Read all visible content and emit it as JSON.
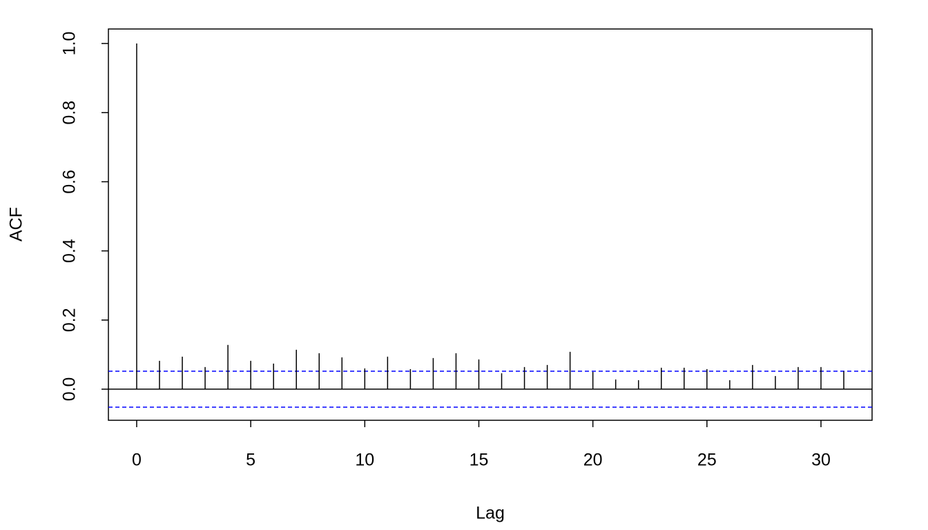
{
  "chart_data": {
    "type": "acf",
    "x_label": "Lag",
    "y_label": "ACF",
    "x": [
      0,
      1,
      2,
      3,
      4,
      5,
      6,
      7,
      8,
      9,
      10,
      11,
      12,
      13,
      14,
      15,
      16,
      17,
      18,
      19,
      20,
      21,
      22,
      23,
      24,
      25,
      26,
      27,
      28,
      29,
      30,
      31
    ],
    "values": [
      1.0,
      0.082,
      0.094,
      0.064,
      0.128,
      0.082,
      0.074,
      0.114,
      0.104,
      0.092,
      0.06,
      0.094,
      0.058,
      0.09,
      0.104,
      0.086,
      0.046,
      0.064,
      0.07,
      0.108,
      0.05,
      0.028,
      0.026,
      0.062,
      0.062,
      0.058,
      0.026,
      0.07,
      0.038,
      0.064,
      0.064,
      0.052
    ],
    "color": "#000000",
    "confidence_bounds": [
      0.052,
      -0.052
    ],
    "bound_color": "#0000ff",
    "xlim": [
      -1.24,
      32.24
    ],
    "xticks": [
      0,
      5,
      10,
      15,
      20,
      25,
      30
    ],
    "ylim": [
      -0.09,
      1.042
    ],
    "yticks": [
      {
        "value": 0,
        "label": "0.0"
      },
      0.2,
      0.4,
      0.6,
      0.8,
      {
        "value": 1,
        "label": "1.0"
      }
    ]
  }
}
